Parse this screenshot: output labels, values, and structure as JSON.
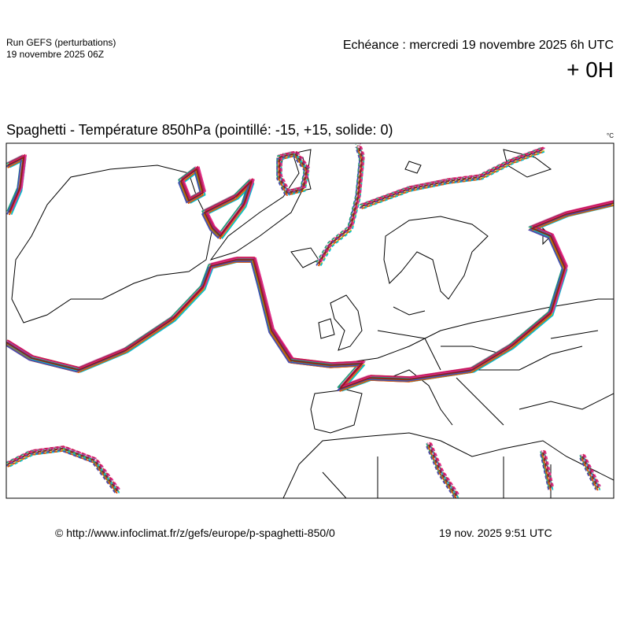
{
  "header": {
    "run": "Run GEFS (perturbations)",
    "run_date": "19 novembre 2025 06Z",
    "echeance": "Echéance : mercredi 19 novembre 2025 6h UTC",
    "lead": "+ 0H"
  },
  "map": {
    "title": "Spaghetti - Température 850hPa (pointillé: -15, +15, solide: 0)",
    "unit": "°C"
  },
  "footer": {
    "source": "© http://www.infoclimat.fr/z/gefs/europe/p-spaghetti-850/0",
    "timestamp": "19 nov. 2025  9:51 UTC"
  }
}
